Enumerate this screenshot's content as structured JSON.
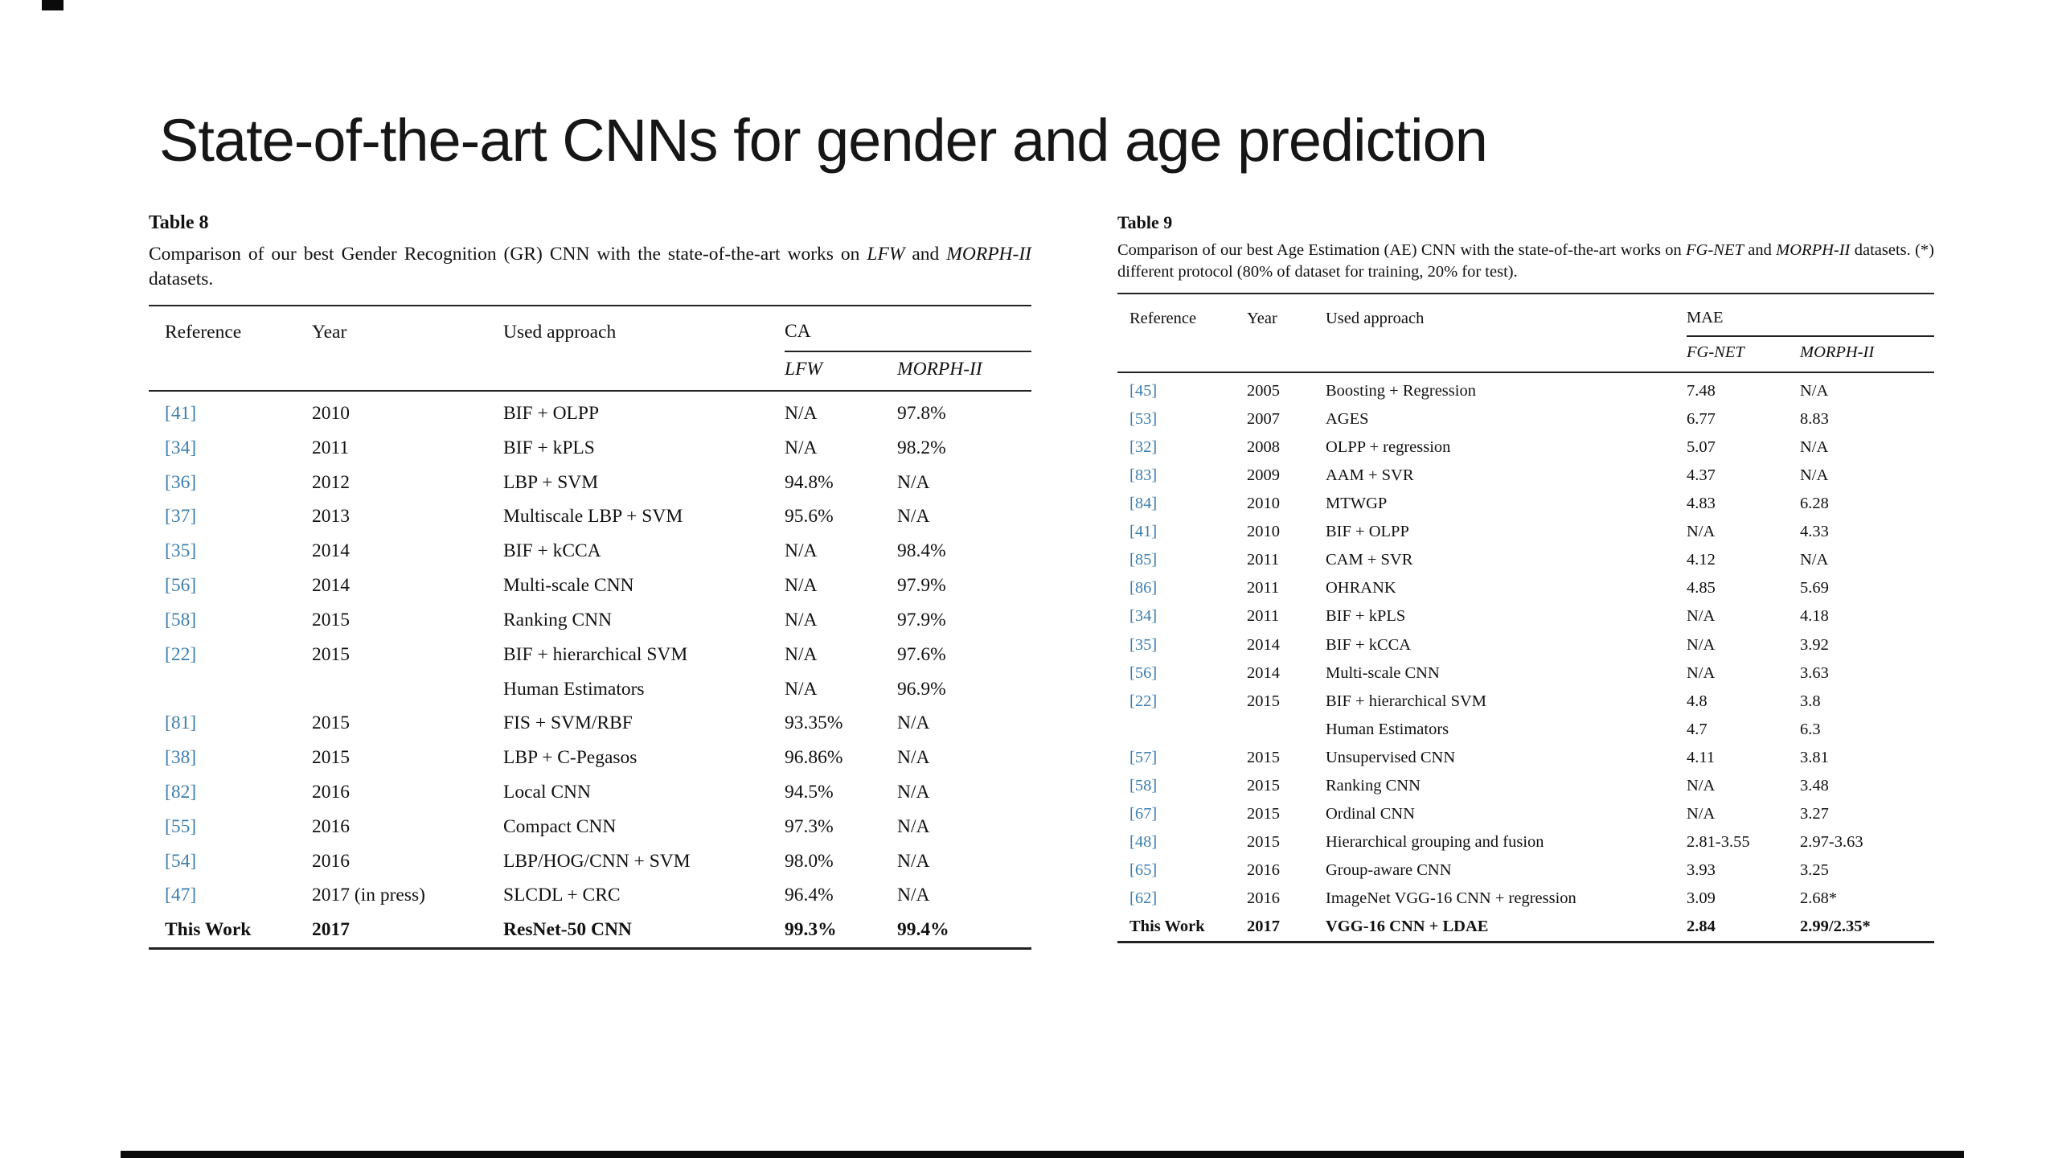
{
  "slide": {
    "title": "State-of-the-art CNNs for gender and age prediction"
  },
  "colors": {
    "citation": "#3d7eae",
    "rule": "#222222"
  },
  "table8": {
    "label": "Table 8",
    "caption_segments": [
      {
        "t": "Comparison of our best Gender Recognition (GR) CNN with the state-of-the-art works on ",
        "i": false
      },
      {
        "t": "LFW",
        "i": true
      },
      {
        "t": " and ",
        "i": false
      },
      {
        "t": "MORPH-II",
        "i": true
      },
      {
        "t": " datasets.",
        "i": false
      }
    ],
    "columns": [
      "Reference",
      "Year",
      "Used approach"
    ],
    "group_header": "CA",
    "sub_columns": [
      "LFW",
      "MORPH-II"
    ],
    "rows": [
      {
        "ref": "[41]",
        "year": "2010",
        "approach": "BIF + OLPP",
        "v1": "N/A",
        "v2": "97.8%"
      },
      {
        "ref": "[34]",
        "year": "2011",
        "approach": "BIF + kPLS",
        "v1": "N/A",
        "v2": "98.2%"
      },
      {
        "ref": "[36]",
        "year": "2012",
        "approach": "LBP + SVM",
        "v1": "94.8%",
        "v2": "N/A"
      },
      {
        "ref": "[37]",
        "year": "2013",
        "approach": "Multiscale LBP + SVM",
        "v1": "95.6%",
        "v2": "N/A"
      },
      {
        "ref": "[35]",
        "year": "2014",
        "approach": "BIF + kCCA",
        "v1": "N/A",
        "v2": "98.4%"
      },
      {
        "ref": "[56]",
        "year": "2014",
        "approach": "Multi-scale CNN",
        "v1": "N/A",
        "v2": "97.9%"
      },
      {
        "ref": "[58]",
        "year": "2015",
        "approach": "Ranking CNN",
        "v1": "N/A",
        "v2": "97.9%"
      },
      {
        "ref": "[22]",
        "year": "2015",
        "approach": "BIF + hierarchical SVM",
        "v1": "N/A",
        "v2": "97.6%"
      },
      {
        "ref": "",
        "year": "",
        "approach": "Human Estimators",
        "v1": "N/A",
        "v2": "96.9%"
      },
      {
        "ref": "[81]",
        "year": "2015",
        "approach": "FIS + SVM/RBF",
        "v1": "93.35%",
        "v2": "N/A"
      },
      {
        "ref": "[38]",
        "year": "2015",
        "approach": "LBP + C-Pegasos",
        "v1": "96.86%",
        "v2": "N/A"
      },
      {
        "ref": "[82]",
        "year": "2016",
        "approach": "Local CNN",
        "v1": "94.5%",
        "v2": "N/A"
      },
      {
        "ref": "[55]",
        "year": "2016",
        "approach": "Compact CNN",
        "v1": "97.3%",
        "v2": "N/A"
      },
      {
        "ref": "[54]",
        "year": "2016",
        "approach": "LBP/HOG/CNN + SVM",
        "v1": "98.0%",
        "v2": "N/A"
      },
      {
        "ref": "[47]",
        "year": "2017 (in press)",
        "approach": "SLCDL + CRC",
        "v1": "96.4%",
        "v2": "N/A"
      },
      {
        "ref": "This Work",
        "year": "2017",
        "approach": "ResNet-50 CNN",
        "v1": "99.3%",
        "v2": "99.4%",
        "bold": true
      }
    ]
  },
  "table9": {
    "label": "Table 9",
    "caption_segments": [
      {
        "t": "Comparison of our best Age Estimation (AE) CNN with the state-of-the-art works on ",
        "i": false
      },
      {
        "t": "FG-NET",
        "i": true
      },
      {
        "t": " and ",
        "i": false
      },
      {
        "t": "MORPH-II",
        "i": true
      },
      {
        "t": " datasets. (*) different protocol (80% of dataset for training, 20% for test).",
        "i": false
      }
    ],
    "columns": [
      "Reference",
      "Year",
      "Used approach"
    ],
    "group_header": "MAE",
    "sub_columns": [
      "FG-NET",
      "MORPH-II"
    ],
    "rows": [
      {
        "ref": "[45]",
        "year": "2005",
        "approach": "Boosting + Regression",
        "v1": "7.48",
        "v2": "N/A"
      },
      {
        "ref": "[53]",
        "year": "2007",
        "approach": "AGES",
        "v1": "6.77",
        "v2": "8.83"
      },
      {
        "ref": "[32]",
        "year": "2008",
        "approach": "OLPP + regression",
        "v1": "5.07",
        "v2": "N/A"
      },
      {
        "ref": "[83]",
        "year": "2009",
        "approach": "AAM + SVR",
        "v1": "4.37",
        "v2": "N/A"
      },
      {
        "ref": "[84]",
        "year": "2010",
        "approach": "MTWGP",
        "v1": "4.83",
        "v2": "6.28"
      },
      {
        "ref": "[41]",
        "year": "2010",
        "approach": "BIF + OLPP",
        "v1": "N/A",
        "v2": "4.33"
      },
      {
        "ref": "[85]",
        "year": "2011",
        "approach": "CAM + SVR",
        "v1": "4.12",
        "v2": "N/A"
      },
      {
        "ref": "[86]",
        "year": "2011",
        "approach": "OHRANK",
        "v1": "4.85",
        "v2": "5.69"
      },
      {
        "ref": "[34]",
        "year": "2011",
        "approach": "BIF + kPLS",
        "v1": "N/A",
        "v2": "4.18"
      },
      {
        "ref": "[35]",
        "year": "2014",
        "approach": "BIF + kCCA",
        "v1": "N/A",
        "v2": "3.92"
      },
      {
        "ref": "[56]",
        "year": "2014",
        "approach": "Multi-scale CNN",
        "v1": "N/A",
        "v2": "3.63"
      },
      {
        "ref": "[22]",
        "year": "2015",
        "approach": "BIF + hierarchical SVM",
        "v1": "4.8",
        "v2": "3.8"
      },
      {
        "ref": "",
        "year": "",
        "approach": "Human Estimators",
        "v1": "4.7",
        "v2": "6.3"
      },
      {
        "ref": "[57]",
        "year": "2015",
        "approach": "Unsupervised CNN",
        "v1": "4.11",
        "v2": "3.81"
      },
      {
        "ref": "[58]",
        "year": "2015",
        "approach": "Ranking CNN",
        "v1": "N/A",
        "v2": "3.48"
      },
      {
        "ref": "[67]",
        "year": "2015",
        "approach": "Ordinal CNN",
        "v1": "N/A",
        "v2": "3.27"
      },
      {
        "ref": "[48]",
        "year": "2015",
        "approach": "Hierarchical grouping and fusion",
        "v1": "2.81-3.55",
        "v2": "2.97-3.63"
      },
      {
        "ref": "[65]",
        "year": "2016",
        "approach": "Group-aware CNN",
        "v1": "3.93",
        "v2": "3.25"
      },
      {
        "ref": "[62]",
        "year": "2016",
        "approach": "ImageNet VGG-16 CNN + regression",
        "v1": "3.09",
        "v2": "2.68*"
      },
      {
        "ref": "This Work",
        "year": "2017",
        "approach": "VGG-16 CNN + LDAE",
        "v1": "2.84",
        "v2": "2.99/2.35*",
        "bold": true
      }
    ]
  }
}
